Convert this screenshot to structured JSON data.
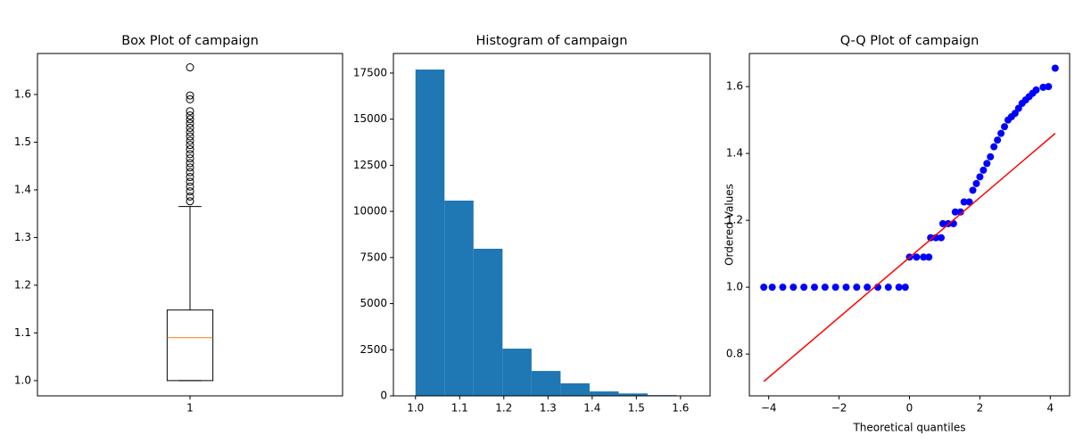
{
  "chart_data": [
    {
      "type": "box",
      "title": "Box Plot of campaign",
      "categories": [
        "1"
      ],
      "box": {
        "whislo": 1.0,
        "q1": 1.0,
        "median": 1.09,
        "q3": 1.148,
        "whishi": 1.365,
        "fliers": [
          1.376,
          1.386,
          1.397,
          1.407,
          1.417,
          1.427,
          1.437,
          1.447,
          1.456,
          1.466,
          1.475,
          1.485,
          1.494,
          1.503,
          1.512,
          1.521,
          1.53,
          1.539,
          1.548,
          1.556,
          1.565,
          1.59,
          1.598,
          1.657
        ]
      },
      "color": "#000000",
      "median_color": "#ff7f0e",
      "xlim": [
        0.5,
        1.5
      ],
      "ylim": [
        0.968,
        1.686
      ],
      "yticks": [
        {
          "value": 1.0,
          "label": "1.0"
        },
        1.1,
        1.2,
        1.3,
        1.4,
        1.5,
        1.6
      ]
    },
    {
      "type": "histogram",
      "title": "Histogram of campaign",
      "bins": [
        1.0,
        1.0657,
        1.1314,
        1.1971,
        1.2628,
        1.3285,
        1.3942,
        1.4599,
        1.5256,
        1.5913,
        1.657
      ],
      "values": [
        17690,
        10585,
        7975,
        2560,
        1350,
        680,
        240,
        130,
        40,
        10
      ],
      "color": "#1f77b4",
      "xlim": [
        0.95,
        1.667
      ],
      "ylim": [
        0,
        18560
      ],
      "xticks": [
        {
          "value": 1.0,
          "label": "1.0"
        },
        1.1,
        1.2,
        1.3,
        1.4,
        1.5,
        1.6
      ],
      "yticks": [
        0,
        2500,
        5000,
        7500,
        10000,
        12500,
        15000,
        17500
      ]
    },
    {
      "type": "qq",
      "title": "Q-Q Plot of campaign",
      "x_label": "Theoretical quantiles",
      "y_label": "Ordered Values",
      "x": [
        -4.14,
        -3.9,
        -3.6,
        -3.3,
        -3.0,
        -2.7,
        -2.4,
        -2.1,
        -1.8,
        -1.5,
        -1.2,
        -0.9,
        -0.6,
        -0.3,
        -0.12,
        0.0,
        0.2,
        0.4,
        0.55,
        0.6,
        0.75,
        0.9,
        0.95,
        1.1,
        1.25,
        1.3,
        1.45,
        1.55,
        1.7,
        1.8,
        1.9,
        2.0,
        2.1,
        2.2,
        2.3,
        2.4,
        2.5,
        2.6,
        2.7,
        2.8,
        2.9,
        3.0,
        3.1,
        3.2,
        3.3,
        3.4,
        3.5,
        3.6,
        3.8,
        3.95,
        4.14
      ],
      "values": [
        1.0,
        1.0,
        1.0,
        1.0,
        1.0,
        1.0,
        1.0,
        1.0,
        1.0,
        1.0,
        1.0,
        1.0,
        1.0,
        1.0,
        1.0,
        1.09,
        1.09,
        1.09,
        1.09,
        1.148,
        1.148,
        1.148,
        1.19,
        1.19,
        1.19,
        1.225,
        1.225,
        1.255,
        1.255,
        1.29,
        1.31,
        1.33,
        1.35,
        1.37,
        1.39,
        1.42,
        1.44,
        1.46,
        1.48,
        1.5,
        1.51,
        1.52,
        1.535,
        1.55,
        1.56,
        1.57,
        1.58,
        1.59,
        1.598,
        1.6,
        1.655
      ],
      "color": "#0000ff",
      "fit_line": {
        "x": [
          -4.14,
          4.14
        ],
        "y": [
          0.718,
          1.46
        ],
        "color": "#ff0000"
      },
      "xlim": [
        -4.55,
        4.55
      ],
      "ylim": [
        0.675,
        1.699
      ],
      "xticks": [
        {
          "value": -4,
          "label": "−4"
        },
        {
          "value": -2,
          "label": "−2"
        },
        0,
        2,
        4
      ],
      "yticks": [
        0.8,
        {
          "value": 1.0,
          "label": "1.0"
        },
        1.2,
        1.4,
        1.6
      ]
    }
  ]
}
